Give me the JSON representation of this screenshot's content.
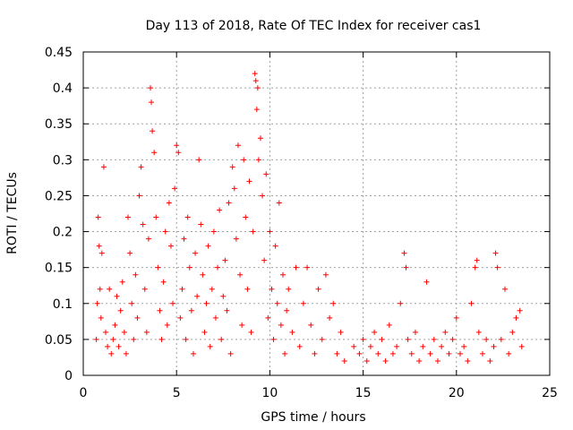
{
  "chart_data": {
    "type": "scatter",
    "title": "Day 113 of 2018, Rate Of TEC Index for receiver cas1",
    "xlabel": "GPS time / hours",
    "ylabel": "ROTI / TECUs",
    "xlim": [
      0,
      25
    ],
    "ylim": [
      0,
      0.45
    ],
    "xticks": [
      0,
      5,
      10,
      15,
      20,
      25
    ],
    "xtick_labels": [
      "0",
      "5",
      "10",
      "15",
      "20",
      "25"
    ],
    "yticks": [
      0,
      0.05,
      0.1,
      0.15,
      0.2,
      0.25,
      0.3,
      0.35,
      0.4,
      0.45
    ],
    "ytick_labels": [
      "0",
      "0.05",
      "0.1",
      "0.15",
      "0.2",
      "0.25",
      "0.3",
      "0.35",
      "0.4",
      "0.45"
    ],
    "grid": true,
    "marker": "+",
    "color": "#ff0000",
    "series": [
      {
        "name": "ROTI",
        "points": [
          [
            0.7,
            0.05
          ],
          [
            0.75,
            0.1
          ],
          [
            0.8,
            0.22
          ],
          [
            0.85,
            0.18
          ],
          [
            0.9,
            0.12
          ],
          [
            0.95,
            0.08
          ],
          [
            1.0,
            0.17
          ],
          [
            1.1,
            0.29
          ],
          [
            1.2,
            0.06
          ],
          [
            1.3,
            0.04
          ],
          [
            1.4,
            0.12
          ],
          [
            1.5,
            0.03
          ],
          [
            1.6,
            0.05
          ],
          [
            1.7,
            0.07
          ],
          [
            1.8,
            0.11
          ],
          [
            1.9,
            0.04
          ],
          [
            2.0,
            0.09
          ],
          [
            2.1,
            0.13
          ],
          [
            2.2,
            0.06
          ],
          [
            2.3,
            0.03
          ],
          [
            2.4,
            0.22
          ],
          [
            2.5,
            0.17
          ],
          [
            2.6,
            0.1
          ],
          [
            2.7,
            0.05
          ],
          [
            2.8,
            0.14
          ],
          [
            2.9,
            0.08
          ],
          [
            3.0,
            0.25
          ],
          [
            3.1,
            0.29
          ],
          [
            3.2,
            0.21
          ],
          [
            3.3,
            0.12
          ],
          [
            3.4,
            0.06
          ],
          [
            3.5,
            0.19
          ],
          [
            3.6,
            0.4
          ],
          [
            3.65,
            0.38
          ],
          [
            3.7,
            0.34
          ],
          [
            3.8,
            0.31
          ],
          [
            3.9,
            0.22
          ],
          [
            4.0,
            0.15
          ],
          [
            4.1,
            0.09
          ],
          [
            4.2,
            0.05
          ],
          [
            4.3,
            0.13
          ],
          [
            4.4,
            0.2
          ],
          [
            4.5,
            0.07
          ],
          [
            4.6,
            0.24
          ],
          [
            4.7,
            0.18
          ],
          [
            4.8,
            0.1
          ],
          [
            4.9,
            0.26
          ],
          [
            5.0,
            0.32
          ],
          [
            5.1,
            0.31
          ],
          [
            5.2,
            0.08
          ],
          [
            5.3,
            0.12
          ],
          [
            5.4,
            0.19
          ],
          [
            5.5,
            0.05
          ],
          [
            5.6,
            0.22
          ],
          [
            5.7,
            0.15
          ],
          [
            5.8,
            0.09
          ],
          [
            5.9,
            0.03
          ],
          [
            6.0,
            0.17
          ],
          [
            6.1,
            0.11
          ],
          [
            6.2,
            0.3
          ],
          [
            6.3,
            0.21
          ],
          [
            6.4,
            0.14
          ],
          [
            6.5,
            0.06
          ],
          [
            6.6,
            0.1
          ],
          [
            6.7,
            0.18
          ],
          [
            6.8,
            0.04
          ],
          [
            6.9,
            0.12
          ],
          [
            7.0,
            0.2
          ],
          [
            7.1,
            0.08
          ],
          [
            7.2,
            0.15
          ],
          [
            7.3,
            0.23
          ],
          [
            7.4,
            0.05
          ],
          [
            7.5,
            0.11
          ],
          [
            7.6,
            0.16
          ],
          [
            7.7,
            0.09
          ],
          [
            7.8,
            0.24
          ],
          [
            7.9,
            0.03
          ],
          [
            8.0,
            0.29
          ],
          [
            8.1,
            0.26
          ],
          [
            8.2,
            0.19
          ],
          [
            8.3,
            0.32
          ],
          [
            8.4,
            0.14
          ],
          [
            8.5,
            0.07
          ],
          [
            8.6,
            0.3
          ],
          [
            8.7,
            0.22
          ],
          [
            8.8,
            0.12
          ],
          [
            8.9,
            0.27
          ],
          [
            9.0,
            0.06
          ],
          [
            9.1,
            0.2
          ],
          [
            9.2,
            0.42
          ],
          [
            9.25,
            0.41
          ],
          [
            9.3,
            0.37
          ],
          [
            9.35,
            0.4
          ],
          [
            9.4,
            0.3
          ],
          [
            9.5,
            0.33
          ],
          [
            9.6,
            0.25
          ],
          [
            9.7,
            0.16
          ],
          [
            9.8,
            0.28
          ],
          [
            9.9,
            0.08
          ],
          [
            10.0,
            0.2
          ],
          [
            10.1,
            0.12
          ],
          [
            10.2,
            0.05
          ],
          [
            10.3,
            0.18
          ],
          [
            10.4,
            0.1
          ],
          [
            10.5,
            0.24
          ],
          [
            10.6,
            0.07
          ],
          [
            10.7,
            0.14
          ],
          [
            10.8,
            0.03
          ],
          [
            10.9,
            0.09
          ],
          [
            11.0,
            0.12
          ],
          [
            11.2,
            0.06
          ],
          [
            11.4,
            0.15
          ],
          [
            11.6,
            0.04
          ],
          [
            11.8,
            0.1
          ],
          [
            12.0,
            0.15
          ],
          [
            12.2,
            0.07
          ],
          [
            12.4,
            0.03
          ],
          [
            12.6,
            0.12
          ],
          [
            12.8,
            0.05
          ],
          [
            13.0,
            0.14
          ],
          [
            13.2,
            0.08
          ],
          [
            13.4,
            0.1
          ],
          [
            13.6,
            0.03
          ],
          [
            13.8,
            0.06
          ],
          [
            14.0,
            0.02
          ],
          [
            14.5,
            0.04
          ],
          [
            14.8,
            0.03
          ],
          [
            15.0,
            0.05
          ],
          [
            15.2,
            0.02
          ],
          [
            15.4,
            0.04
          ],
          [
            15.6,
            0.06
          ],
          [
            15.8,
            0.03
          ],
          [
            16.0,
            0.05
          ],
          [
            16.2,
            0.02
          ],
          [
            16.4,
            0.07
          ],
          [
            16.6,
            0.03
          ],
          [
            16.8,
            0.04
          ],
          [
            17.0,
            0.1
          ],
          [
            17.2,
            0.17
          ],
          [
            17.3,
            0.15
          ],
          [
            17.4,
            0.05
          ],
          [
            17.6,
            0.03
          ],
          [
            17.8,
            0.06
          ],
          [
            18.0,
            0.02
          ],
          [
            18.2,
            0.04
          ],
          [
            18.4,
            0.13
          ],
          [
            18.6,
            0.03
          ],
          [
            18.8,
            0.05
          ],
          [
            19.0,
            0.02
          ],
          [
            19.2,
            0.04
          ],
          [
            19.4,
            0.06
          ],
          [
            19.6,
            0.03
          ],
          [
            19.8,
            0.05
          ],
          [
            20.0,
            0.08
          ],
          [
            20.2,
            0.03
          ],
          [
            20.4,
            0.04
          ],
          [
            20.6,
            0.02
          ],
          [
            20.8,
            0.1
          ],
          [
            21.0,
            0.15
          ],
          [
            21.1,
            0.16
          ],
          [
            21.2,
            0.06
          ],
          [
            21.4,
            0.03
          ],
          [
            21.6,
            0.05
          ],
          [
            21.8,
            0.02
          ],
          [
            22.0,
            0.04
          ],
          [
            22.1,
            0.17
          ],
          [
            22.2,
            0.15
          ],
          [
            22.4,
            0.05
          ],
          [
            22.6,
            0.12
          ],
          [
            22.8,
            0.03
          ],
          [
            23.0,
            0.06
          ],
          [
            23.2,
            0.08
          ],
          [
            23.4,
            0.09
          ],
          [
            23.5,
            0.04
          ]
        ]
      }
    ]
  }
}
